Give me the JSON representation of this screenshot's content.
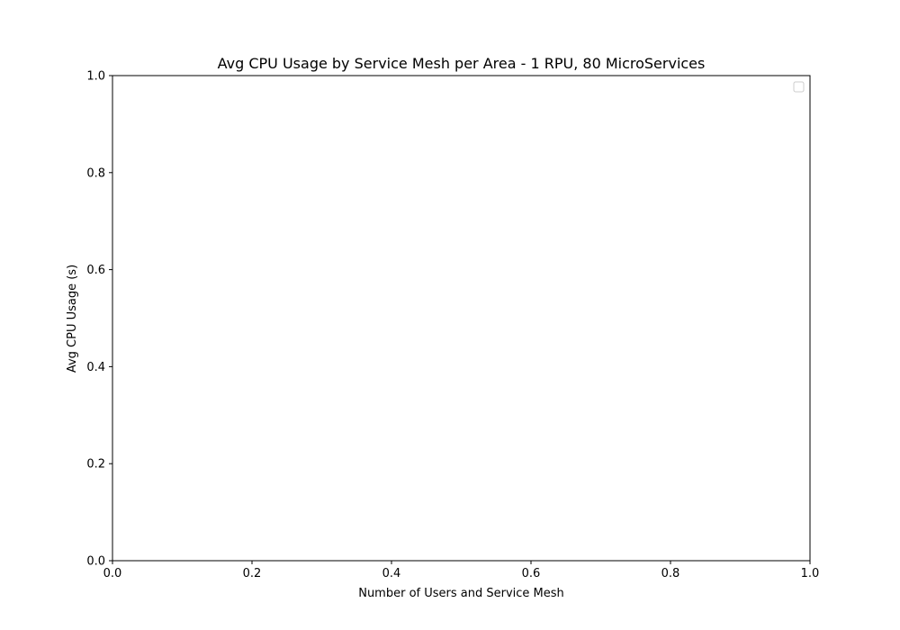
{
  "chart_data": {
    "type": "line",
    "title": "Avg CPU Usage by Service Mesh per Area - 1 RPU, 80 MicroServices",
    "xlabel": "Number of Users and Service Mesh",
    "ylabel": "Avg CPU Usage (s)",
    "xlim": [
      0,
      1
    ],
    "ylim": [
      0,
      1
    ],
    "x_ticks": [
      "0.0",
      "0.2",
      "0.4",
      "0.6",
      "0.8",
      "1.0"
    ],
    "y_ticks": [
      "0.0",
      "0.2",
      "0.4",
      "0.6",
      "0.8",
      "1.0"
    ],
    "series": [],
    "grid": false,
    "legend": {
      "location": "top-right",
      "entries": []
    }
  },
  "colors": {
    "axis": "#000000",
    "background": "#ffffff",
    "legend_border": "#cccccc"
  }
}
